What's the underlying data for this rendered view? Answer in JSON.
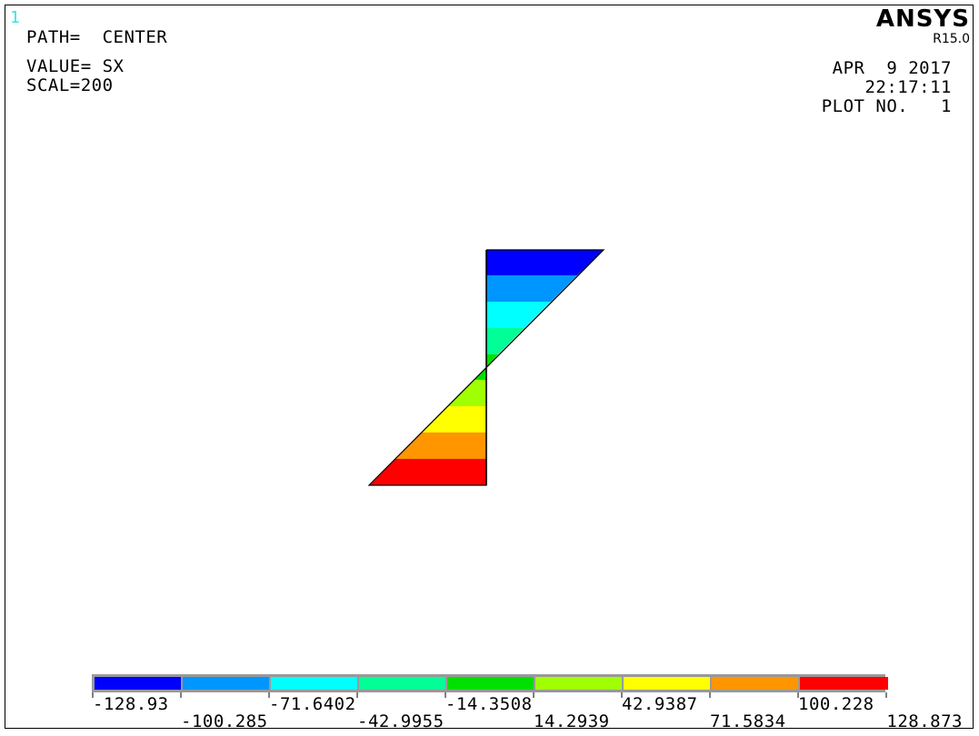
{
  "window_number": "1",
  "header": {
    "path_line": "PATH=  CENTER",
    "value_line": "VALUE= SX",
    "scale_line": "SCAL=200"
  },
  "brand": {
    "name": "ANSYS",
    "version": "R15.0",
    "date": "APR  9 2017",
    "time": "22:17:11",
    "plot_no": "PLOT NO.   1"
  },
  "legend": {
    "colors": [
      "#0000ff",
      "#0096ff",
      "#00ffff",
      "#00ff96",
      "#00e000",
      "#a0ff00",
      "#ffff00",
      "#ff9600",
      "#ff0000"
    ],
    "labels": [
      "-128.93",
      "-100.285",
      "-71.6402",
      "-42.9955",
      "-14.3508",
      "14.2939",
      "42.9387",
      "71.5834",
      "100.228",
      "128.873"
    ]
  }
}
